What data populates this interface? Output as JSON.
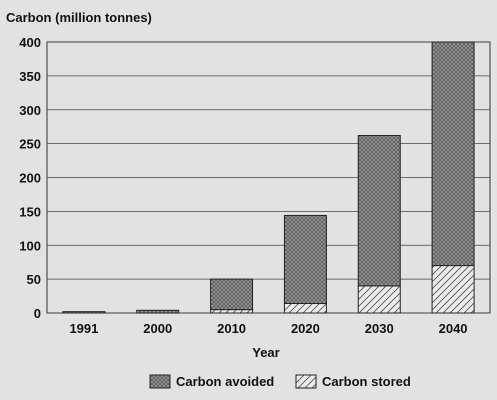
{
  "chart_data": {
    "type": "bar",
    "stacked": true,
    "title": "Carbon (million tonnes)",
    "xlabel": "Year",
    "ylabel": "Carbon (million tonnes)",
    "categories": [
      "1991",
      "2000",
      "2010",
      "2020",
      "2030",
      "2040"
    ],
    "ylim": [
      0,
      400
    ],
    "yticks": [
      0,
      50,
      100,
      150,
      200,
      250,
      300,
      350,
      400
    ],
    "grid": true,
    "legend_position": "bottom",
    "series": [
      {
        "name": "Carbon stored",
        "values": [
          0,
          0,
          5,
          14,
          40,
          70
        ],
        "pattern": "diagonal-hatch"
      },
      {
        "name": "Carbon avoided",
        "values": [
          2,
          4,
          45,
          130,
          222,
          330
        ],
        "pattern": "crosshatch"
      }
    ]
  },
  "colors": {
    "background": "#e2e2e2",
    "plot_background": "#e2e2e2",
    "bar_outline": "#222222",
    "grid": "#444444"
  }
}
